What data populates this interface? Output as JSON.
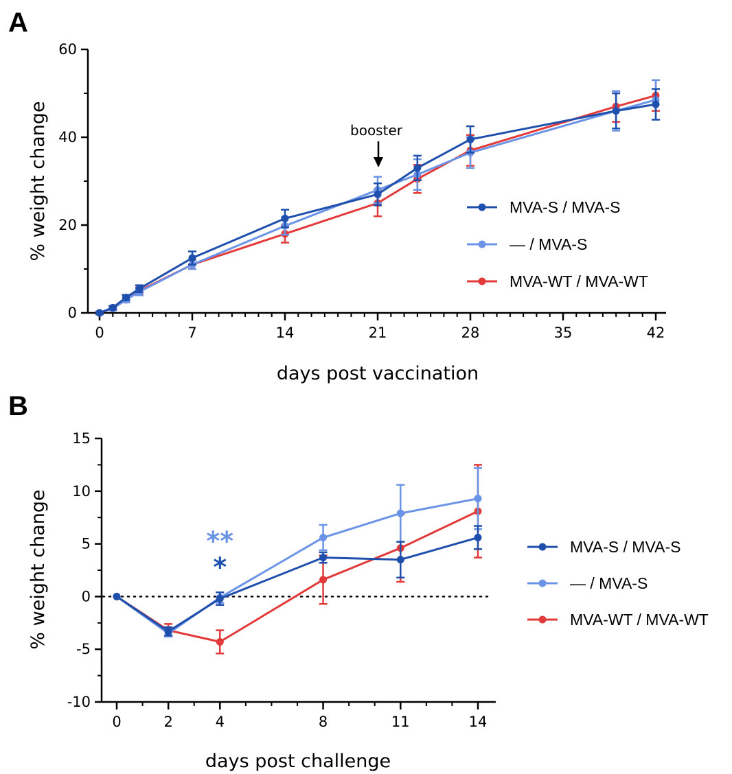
{
  "colors": {
    "mva_s": "#1f4fad",
    "dash_mva_s": "#6b93e6",
    "mva_wt": "#e23a3a",
    "axis": "#000000"
  },
  "chart_data": [
    {
      "panel_label": "A",
      "type": "line",
      "xlabel": "days post vaccination",
      "ylabel": "% weight change",
      "xlim": [
        0,
        42
      ],
      "ylim": [
        0,
        60
      ],
      "xticks": [
        0,
        7,
        14,
        21,
        28,
        35,
        42
      ],
      "yticks": [
        0,
        20,
        40,
        60
      ],
      "grid": false,
      "legend_position": "right",
      "annotation": {
        "text": "booster",
        "x": 21
      },
      "series": [
        {
          "name": "MVA-S / MVA-S",
          "color": "#1f4fad",
          "x": [
            0,
            1,
            2,
            3,
            7,
            14,
            21,
            24,
            28,
            39,
            42
          ],
          "y": [
            0,
            1.2,
            3.5,
            5.5,
            12.5,
            21.5,
            27,
            33,
            39.5,
            46,
            47.5
          ],
          "err": [
            0.3,
            0.4,
            0.6,
            0.8,
            1.5,
            2,
            2.5,
            2.8,
            3,
            4,
            3.5
          ]
        },
        {
          "name": "— / MVA-S",
          "color": "#6b93e6",
          "x": [
            0,
            1,
            2,
            3,
            7,
            14,
            21,
            24,
            28,
            39,
            42
          ],
          "y": [
            0,
            1,
            3,
            4.8,
            11,
            19.8,
            28,
            31.5,
            36.5,
            46,
            48.5
          ],
          "err": [
            0.3,
            0.4,
            0.6,
            0.8,
            1,
            2,
            3,
            3.5,
            3.5,
            4.5,
            4.5
          ]
        },
        {
          "name": "MVA-WT / MVA-WT",
          "color": "#e23a3a",
          "x": [
            0,
            1,
            2,
            3,
            7,
            14,
            21,
            24,
            28,
            39,
            42
          ],
          "y": [
            0,
            1,
            3,
            5,
            11,
            18,
            25,
            30.5,
            37,
            47,
            49.5
          ],
          "err": [
            0.3,
            0.4,
            0.6,
            0.8,
            1,
            2,
            3,
            3.2,
            3.5,
            3.5,
            3.5
          ]
        }
      ]
    },
    {
      "panel_label": "B",
      "type": "line",
      "xlabel": "days post challenge",
      "ylabel": "% weight change",
      "xlim": [
        0,
        14
      ],
      "ylim": [
        -10,
        15
      ],
      "xticks": [
        0,
        2,
        4,
        8,
        11,
        14
      ],
      "yticks": [
        -10,
        -5,
        0,
        5,
        10,
        15
      ],
      "grid": false,
      "reference_line": {
        "y": 0,
        "style": "dotted"
      },
      "legend_position": "right",
      "significance": [
        {
          "x": 4,
          "text": "**",
          "color": "#6b93e6"
        },
        {
          "x": 4,
          "text": "*",
          "color": "#1f4fad"
        }
      ],
      "series": [
        {
          "name": "MVA-S / MVA-S",
          "color": "#1f4fad",
          "x": [
            0,
            2,
            4,
            8,
            11,
            14
          ],
          "y": [
            0,
            -3.3,
            -0.2,
            3.7,
            3.5,
            5.6
          ],
          "err": [
            0,
            0.4,
            0.6,
            0.5,
            1.7,
            1.1
          ]
        },
        {
          "name": "— / MVA-S",
          "color": "#6b93e6",
          "x": [
            0,
            2,
            4,
            8,
            11,
            14
          ],
          "y": [
            0,
            -3.5,
            -0.1,
            5.6,
            7.9,
            9.3
          ],
          "err": [
            0,
            0.3,
            0.5,
            1.2,
            2.7,
            2.9
          ]
        },
        {
          "name": "MVA-WT / MVA-WT",
          "color": "#e23a3a",
          "x": [
            0,
            2,
            4,
            8,
            11,
            14
          ],
          "y": [
            0,
            -3.2,
            -4.3,
            1.6,
            4.6,
            8.1
          ],
          "err": [
            0,
            0.6,
            1.1,
            2.3,
            3.2,
            4.4
          ]
        }
      ]
    }
  ]
}
